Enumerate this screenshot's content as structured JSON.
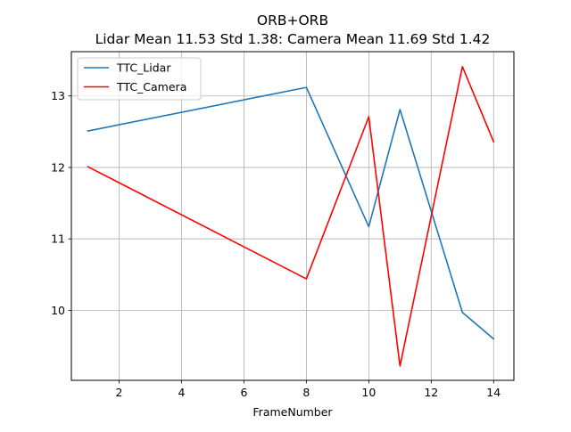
{
  "chart_data": {
    "type": "line",
    "title": "ORB+ORB",
    "subtitle": "Lidar Mean 11.53 Std 1.38: Camera Mean 11.69 Std 1.42",
    "xlabel": "FrameNumber",
    "ylabel": "",
    "xlim": [
      0.47,
      14.65
    ],
    "ylim": [
      9.02,
      13.62
    ],
    "xticks": [
      2,
      4,
      6,
      8,
      10,
      12,
      14
    ],
    "yticks": [
      10,
      11,
      12,
      13
    ],
    "grid": true,
    "legend_position": "top-left",
    "x": [
      1,
      8,
      10,
      11,
      13,
      14
    ],
    "series": [
      {
        "name": "TTC_Lidar",
        "color": "#1f77b4",
        "values": [
          12.51,
          13.12,
          11.17,
          12.81,
          9.97,
          9.6
        ]
      },
      {
        "name": "TTC_Camera",
        "color": "#ff0000",
        "values": [
          12.01,
          10.44,
          12.71,
          9.22,
          13.41,
          12.36
        ]
      }
    ]
  }
}
